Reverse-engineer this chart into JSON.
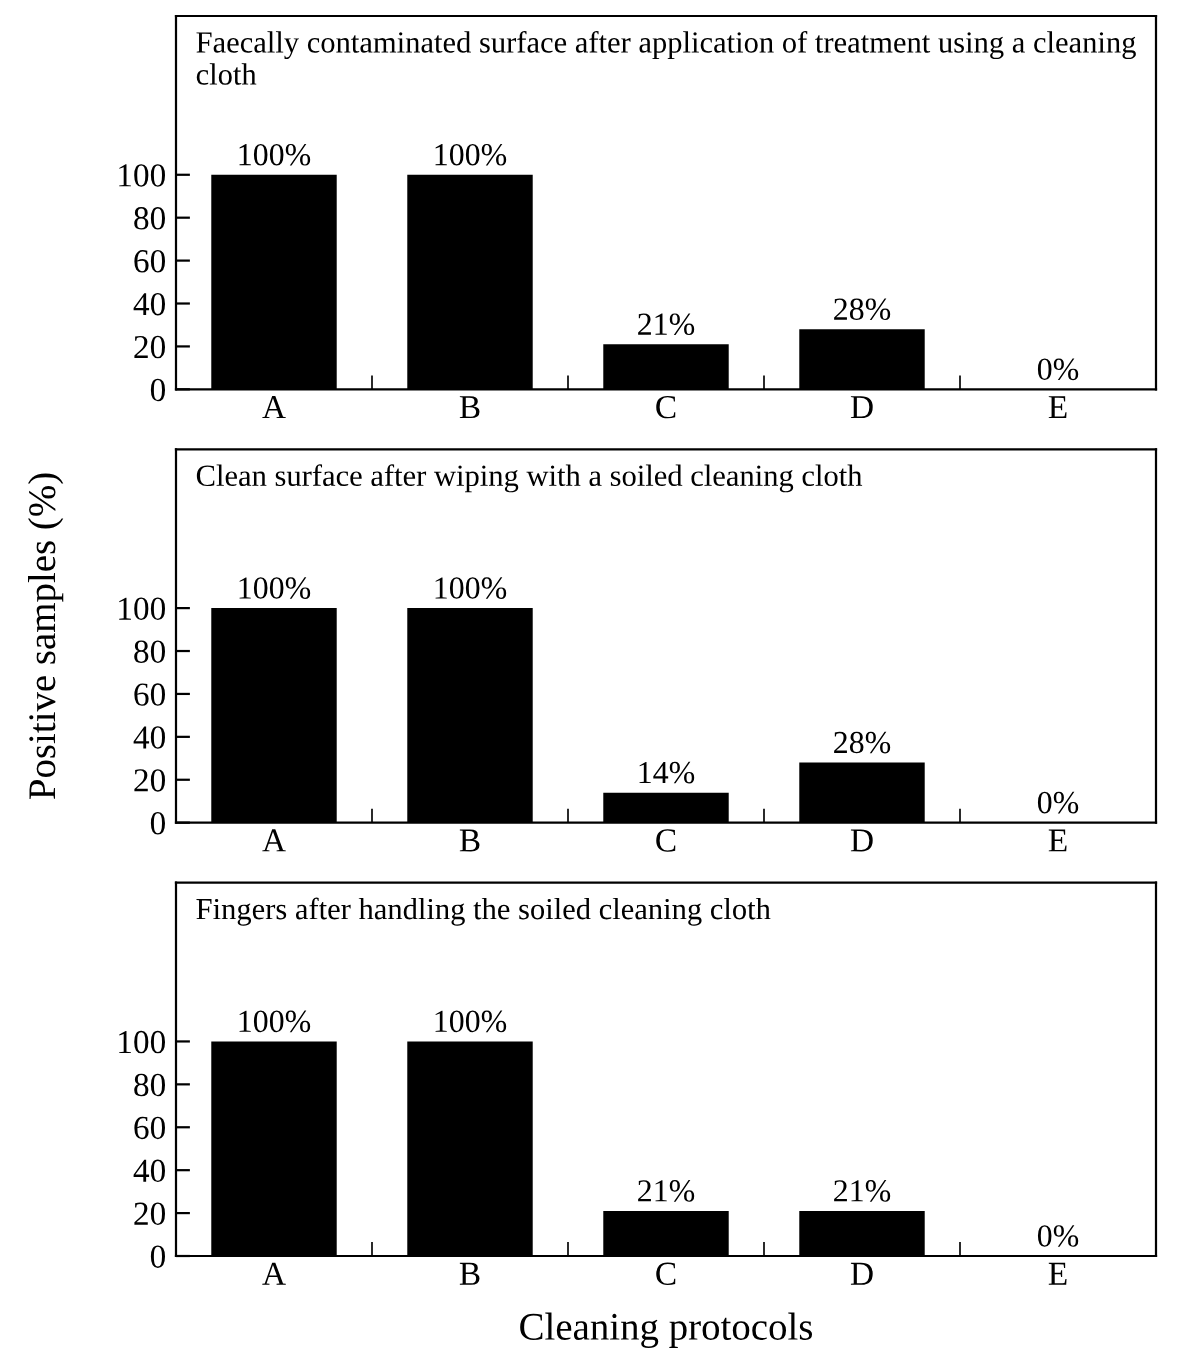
{
  "chart_data": [
    {
      "type": "bar",
      "title": "Faecally contaminated surface after application of treatment using a cleaning cloth",
      "categories": [
        "A",
        "B",
        "C",
        "D",
        "E"
      ],
      "values": [
        100,
        100,
        21,
        28,
        0
      ],
      "value_labels": [
        "100%",
        "100%",
        "21%",
        "28%",
        "0%"
      ],
      "color": "#000000",
      "ylim": [
        0,
        174
      ],
      "yticks": [
        0,
        20,
        40,
        60,
        80,
        100
      ]
    },
    {
      "type": "bar",
      "title": "Clean surface after wiping with a soiled cleaning cloth",
      "ylabel": "Positive samples (%)",
      "categories": [
        "A",
        "B",
        "C",
        "D",
        "E"
      ],
      "values": [
        100,
        100,
        14,
        28,
        0
      ],
      "value_labels": [
        "100%",
        "100%",
        "14%",
        "28%",
        "0%"
      ],
      "color": "#000000",
      "ylim": [
        0,
        174
      ],
      "yticks": [
        0,
        20,
        40,
        60,
        80,
        100
      ]
    },
    {
      "type": "bar",
      "title": "Fingers after handling the soiled cleaning cloth",
      "xlabel": "Cleaning protocols",
      "categories": [
        "A",
        "B",
        "C",
        "D",
        "E"
      ],
      "values": [
        100,
        100,
        21,
        21,
        0
      ],
      "value_labels": [
        "100%",
        "100%",
        "21%",
        "21%",
        "0%"
      ],
      "color": "#000000",
      "ylim": [
        0,
        174
      ],
      "yticks": [
        0,
        20,
        40,
        60,
        80,
        100
      ]
    }
  ]
}
